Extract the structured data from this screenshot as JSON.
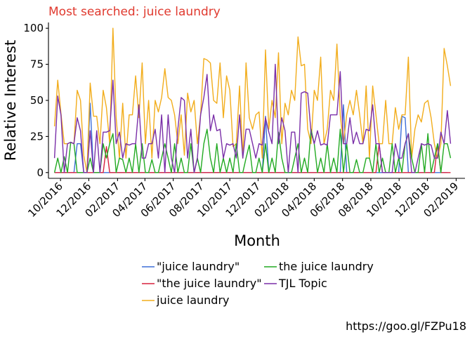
{
  "chart_data": {
    "type": "line",
    "title": "Most searched: juice laundry",
    "xlabel": "Month",
    "ylabel": "Relative Interest",
    "caption": "https://goo.gl/FZPu18",
    "x_tick_labels": [
      "10/2016",
      "12/2016",
      "02/2017",
      "04/2017",
      "06/2017",
      "08/2017",
      "10/2017",
      "12/2017",
      "02/2018",
      "04/2018",
      "06/2018",
      "08/2018",
      "10/2018",
      "12/2018",
      "02/2019"
    ],
    "y_ticks": [
      0,
      25,
      50,
      75,
      100
    ],
    "ylim": [
      -4,
      104
    ],
    "x_start": "2016-09-18",
    "week_count": 123,
    "grid": false,
    "legend_position": "bottom",
    "series": [
      {
        "name": "\"juice laundry\"",
        "color": "#3d6fd8",
        "values": [
          0,
          0,
          0,
          0,
          0,
          0,
          0,
          20,
          20,
          0,
          0,
          48,
          0,
          0,
          0,
          0,
          0,
          0,
          0,
          0,
          0,
          0,
          0,
          0,
          0,
          0,
          0,
          0,
          0,
          0,
          0,
          0,
          0,
          0,
          0,
          0,
          0,
          0,
          0,
          0,
          0,
          0,
          0,
          0,
          0,
          0,
          0,
          0,
          0,
          0,
          0,
          0,
          0,
          0,
          0,
          0,
          0,
          0,
          0,
          0,
          0,
          0,
          0,
          0,
          0,
          39,
          0,
          0,
          0,
          0,
          0,
          0,
          0,
          0,
          0,
          0,
          0,
          0,
          0,
          0,
          0,
          0,
          0,
          0,
          0,
          0,
          0,
          0,
          0,
          47,
          0,
          0,
          0,
          0,
          0,
          0,
          0,
          0,
          0,
          0,
          0,
          0,
          0,
          0,
          0,
          0,
          0,
          39,
          38,
          0,
          0,
          0,
          0,
          0,
          0,
          0,
          0,
          0,
          0,
          0,
          0,
          0
        ]
      },
      {
        "name": "\"the juice laundry\"",
        "color": "#d7213f",
        "values": [
          0,
          0,
          0,
          0,
          0,
          0,
          0,
          0,
          0,
          0,
          0,
          0,
          0,
          0,
          0,
          0,
          18,
          0,
          0,
          0,
          0,
          0,
          0,
          0,
          0,
          0,
          0,
          0,
          0,
          0,
          0,
          0,
          0,
          0,
          0,
          0,
          0,
          0,
          0,
          0,
          0,
          0,
          0,
          0,
          0,
          0,
          0,
          0,
          0,
          0,
          0,
          0,
          0,
          0,
          0,
          0,
          0,
          0,
          0,
          0,
          0,
          0,
          0,
          0,
          0,
          0,
          0,
          0,
          0,
          0,
          0,
          0,
          0,
          0,
          0,
          0,
          0,
          0,
          0,
          0,
          0,
          0,
          0,
          0,
          0,
          0,
          0,
          0,
          0,
          0,
          0,
          0,
          0,
          0,
          0,
          0,
          0,
          0,
          0,
          0,
          20,
          0,
          0,
          0,
          0,
          0,
          0,
          0,
          0,
          0,
          0,
          0,
          0,
          0,
          0,
          0,
          0,
          0,
          20,
          0,
          0,
          0,
          0
        ]
      },
      {
        "name": "juice laundry",
        "color": "#f2ad1c",
        "values": [
          32,
          64,
          41,
          20,
          20,
          21,
          20,
          57,
          50,
          12,
          0,
          62,
          39,
          39,
          20,
          57,
          45,
          20,
          100,
          38,
          10,
          48,
          10,
          40,
          40,
          67,
          38,
          76,
          20,
          50,
          10,
          50,
          42,
          52,
          72,
          52,
          50,
          40,
          20,
          40,
          12,
          55,
          42,
          50,
          20,
          40,
          79,
          78,
          76,
          50,
          48,
          76,
          38,
          67,
          57,
          18,
          20,
          60,
          10,
          76,
          38,
          30,
          40,
          42,
          10,
          85,
          30,
          50,
          38,
          83,
          20,
          48,
          40,
          57,
          50,
          94,
          74,
          75,
          30,
          20,
          57,
          50,
          80,
          20,
          30,
          57,
          50,
          89,
          40,
          20,
          40,
          50,
          40,
          57,
          40,
          20,
          60,
          10,
          60,
          40,
          20,
          20,
          50,
          20,
          20,
          45,
          30,
          40,
          40,
          80,
          10,
          30,
          40,
          35,
          48,
          50,
          38,
          20,
          10,
          20,
          86,
          74,
          60
        ]
      },
      {
        "name": "the juice laundry",
        "color": "#22aa22",
        "values": [
          0,
          10,
          0,
          11,
          0,
          21,
          20,
          0,
          0,
          0,
          0,
          10,
          0,
          0,
          0,
          20,
          10,
          20,
          27,
          0,
          10,
          9,
          0,
          10,
          0,
          20,
          0,
          20,
          0,
          0,
          9,
          0,
          0,
          10,
          20,
          10,
          0,
          20,
          0,
          10,
          0,
          0,
          20,
          0,
          10,
          0,
          20,
          30,
          10,
          0,
          20,
          0,
          10,
          0,
          10,
          0,
          20,
          0,
          0,
          10,
          19,
          0,
          0,
          10,
          0,
          20,
          0,
          10,
          0,
          28,
          10,
          0,
          0,
          0,
          10,
          20,
          0,
          10,
          0,
          30,
          20,
          0,
          10,
          0,
          20,
          0,
          10,
          0,
          30,
          0,
          20,
          0,
          0,
          9,
          0,
          0,
          10,
          10,
          0,
          20,
          0,
          10,
          0,
          0,
          20,
          0,
          10,
          0,
          20,
          27,
          10,
          0,
          0,
          20,
          0,
          27,
          0,
          10,
          20,
          0,
          20,
          20,
          10
        ]
      },
      {
        "name": "TJL Topic",
        "color": "#7a2fa8",
        "values": [
          10,
          53,
          40,
          0,
          20,
          21,
          20,
          38,
          29,
          0,
          0,
          29,
          0,
          29,
          0,
          28,
          28,
          29,
          64,
          20,
          28,
          10,
          20,
          19,
          20,
          20,
          47,
          10,
          10,
          20,
          20,
          30,
          10,
          40,
          0,
          40,
          10,
          0,
          30,
          52,
          50,
          10,
          30,
          0,
          10,
          40,
          52,
          68,
          29,
          40,
          29,
          30,
          10,
          20,
          19,
          20,
          10,
          40,
          10,
          30,
          30,
          20,
          10,
          20,
          19,
          38,
          28,
          20,
          75,
          20,
          38,
          29,
          0,
          28,
          28,
          0,
          55,
          56,
          55,
          28,
          20,
          29,
          19,
          20,
          19,
          40,
          40,
          40,
          70,
          20,
          20,
          38,
          20,
          28,
          20,
          20,
          30,
          29,
          47,
          20,
          20,
          0,
          0,
          0,
          0,
          20,
          10,
          10,
          20,
          27,
          0,
          0,
          10,
          20,
          19,
          20,
          19,
          10,
          10,
          28,
          20,
          43,
          20
        ]
      }
    ]
  }
}
